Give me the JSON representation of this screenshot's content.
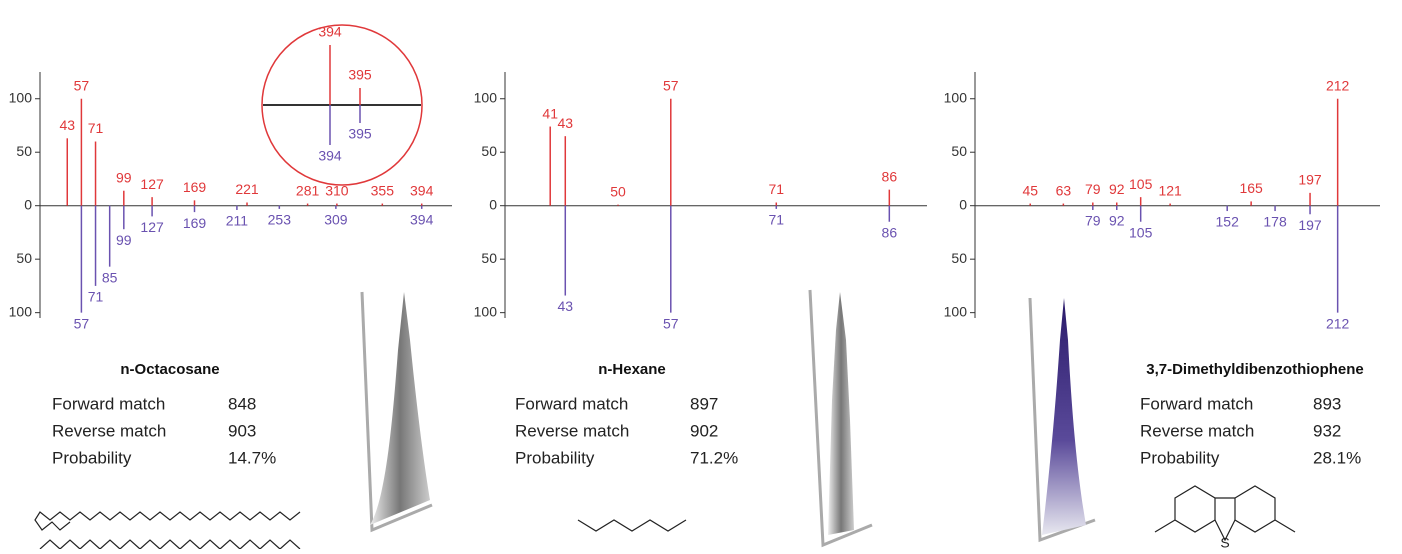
{
  "chart_data": [
    {
      "type": "spectrum",
      "title": "n-Octacosane",
      "info": [
        [
          "Forward match",
          "848"
        ],
        [
          "Reverse match",
          "903"
        ],
        [
          "Probability",
          "14.7%"
        ]
      ],
      "xlim": [
        16,
        424
      ],
      "ylim": [
        -105,
        125
      ],
      "yticks": [
        {
          "value": 100,
          "label": "100"
        },
        50,
        0,
        {
          "value": -50,
          "label": "50"
        },
        {
          "value": -100,
          "label": "100"
        }
      ],
      "series": [
        {
          "color": "#e0383a",
          "x": [
            43,
            57,
            71,
            99,
            127,
            169,
            221,
            281,
            310,
            355,
            394
          ],
          "values": [
            63,
            100,
            60,
            14,
            8,
            5,
            3,
            2,
            2,
            2,
            2
          ]
        },
        {
          "color": "#6a52b0",
          "x": [
            57,
            71,
            85,
            99,
            127,
            169,
            211,
            253,
            309,
            394
          ],
          "values": [
            -100,
            -75,
            -57,
            -22,
            -10,
            -6,
            -4,
            -3,
            -3,
            -3
          ]
        }
      ],
      "inset": {
        "xlim": [
          392,
          397
        ],
        "ylim": [
          -60,
          60
        ],
        "series": [
          {
            "color": "#e0383a",
            "x": [
              394,
              395
            ],
            "values": [
              60,
              17
            ]
          },
          {
            "color": "#6a52b0",
            "x": [
              395,
              394
            ],
            "values": [
              -18,
              -40
            ]
          }
        ]
      }
    },
    {
      "type": "spectrum",
      "title": "n-Hexane",
      "info": [
        [
          "Forward match",
          "897"
        ],
        [
          "Reverse match",
          "902"
        ],
        [
          "Probability",
          "71.2%"
        ]
      ],
      "xlim": [
        35,
        91
      ],
      "ylim": [
        -105,
        125
      ],
      "yticks": [
        {
          "value": 100,
          "label": "100"
        },
        50,
        0,
        {
          "value": -50,
          "label": "50"
        },
        {
          "value": -100,
          "label": "100"
        }
      ],
      "series": [
        {
          "color": "#e0383a",
          "x": [
            41,
            43,
            50,
            57,
            71,
            86
          ],
          "values": [
            74,
            65,
            1,
            100,
            3,
            15
          ]
        },
        {
          "color": "#6a52b0",
          "x": [
            43,
            57,
            71,
            86
          ],
          "values": [
            -84,
            -100,
            -3,
            -15
          ]
        }
      ]
    },
    {
      "type": "spectrum",
      "title": "3,7-Dimethyldibenzothiophene",
      "info": [
        [
          "Forward match",
          "893"
        ],
        [
          "Reverse match",
          "932"
        ],
        [
          "Probability",
          "28.1%"
        ]
      ],
      "xlim": [
        15,
        235
      ],
      "ylim": [
        -105,
        125
      ],
      "yticks": [
        {
          "value": 100,
          "label": "100"
        },
        50,
        0,
        {
          "value": -50,
          "label": "50"
        },
        {
          "value": -100,
          "label": "100"
        }
      ],
      "series": [
        {
          "color": "#e0383a",
          "x": [
            45,
            63,
            79,
            92,
            105,
            121,
            165,
            197,
            212
          ],
          "values": [
            2,
            2,
            3,
            3,
            8,
            2,
            4,
            12,
            100
          ]
        },
        {
          "color": "#6a52b0",
          "x": [
            79,
            92,
            105,
            152,
            178,
            197,
            212
          ],
          "values": [
            -4,
            -4,
            -15,
            -5,
            -5,
            -8,
            -100
          ]
        }
      ]
    }
  ]
}
